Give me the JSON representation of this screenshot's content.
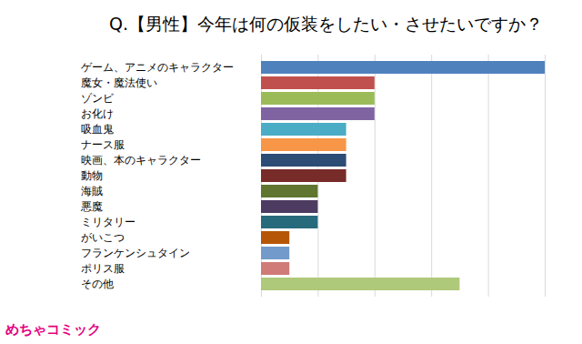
{
  "chart_data": {
    "type": "bar",
    "orientation": "horizontal",
    "title": "Q.【男性】今年は何の仮装をしたい・させたいですか？",
    "categories": [
      "ゲーム、アニメのキャラクター",
      "魔女・魔法使い",
      "ゾンビ",
      "お化け",
      "吸血鬼",
      "ナース服",
      "映画、本のキャラクター",
      "動物",
      "海賊",
      "悪魔",
      "ミリタリー",
      "がいこつ",
      "フランケンシュタイン",
      "ポリス服",
      "その他"
    ],
    "values": [
      10,
      4,
      4,
      4,
      3,
      3,
      3,
      3,
      2,
      2,
      2,
      1,
      1,
      1,
      7
    ],
    "colors": [
      "#4f81bd",
      "#c0504d",
      "#9bbb59",
      "#8064a2",
      "#4bacc6",
      "#f79646",
      "#2c4d75",
      "#772c2a",
      "#5f7530",
      "#4d3b62",
      "#276a7c",
      "#b65708",
      "#729aca",
      "#d07b78",
      "#afc97a"
    ],
    "xlim": [
      0,
      10
    ],
    "xticks": [
      0,
      2,
      4,
      6,
      8,
      10
    ],
    "grid": true,
    "tick_labels": "y",
    "annotations": [
      "めちゃコミック"
    ]
  }
}
